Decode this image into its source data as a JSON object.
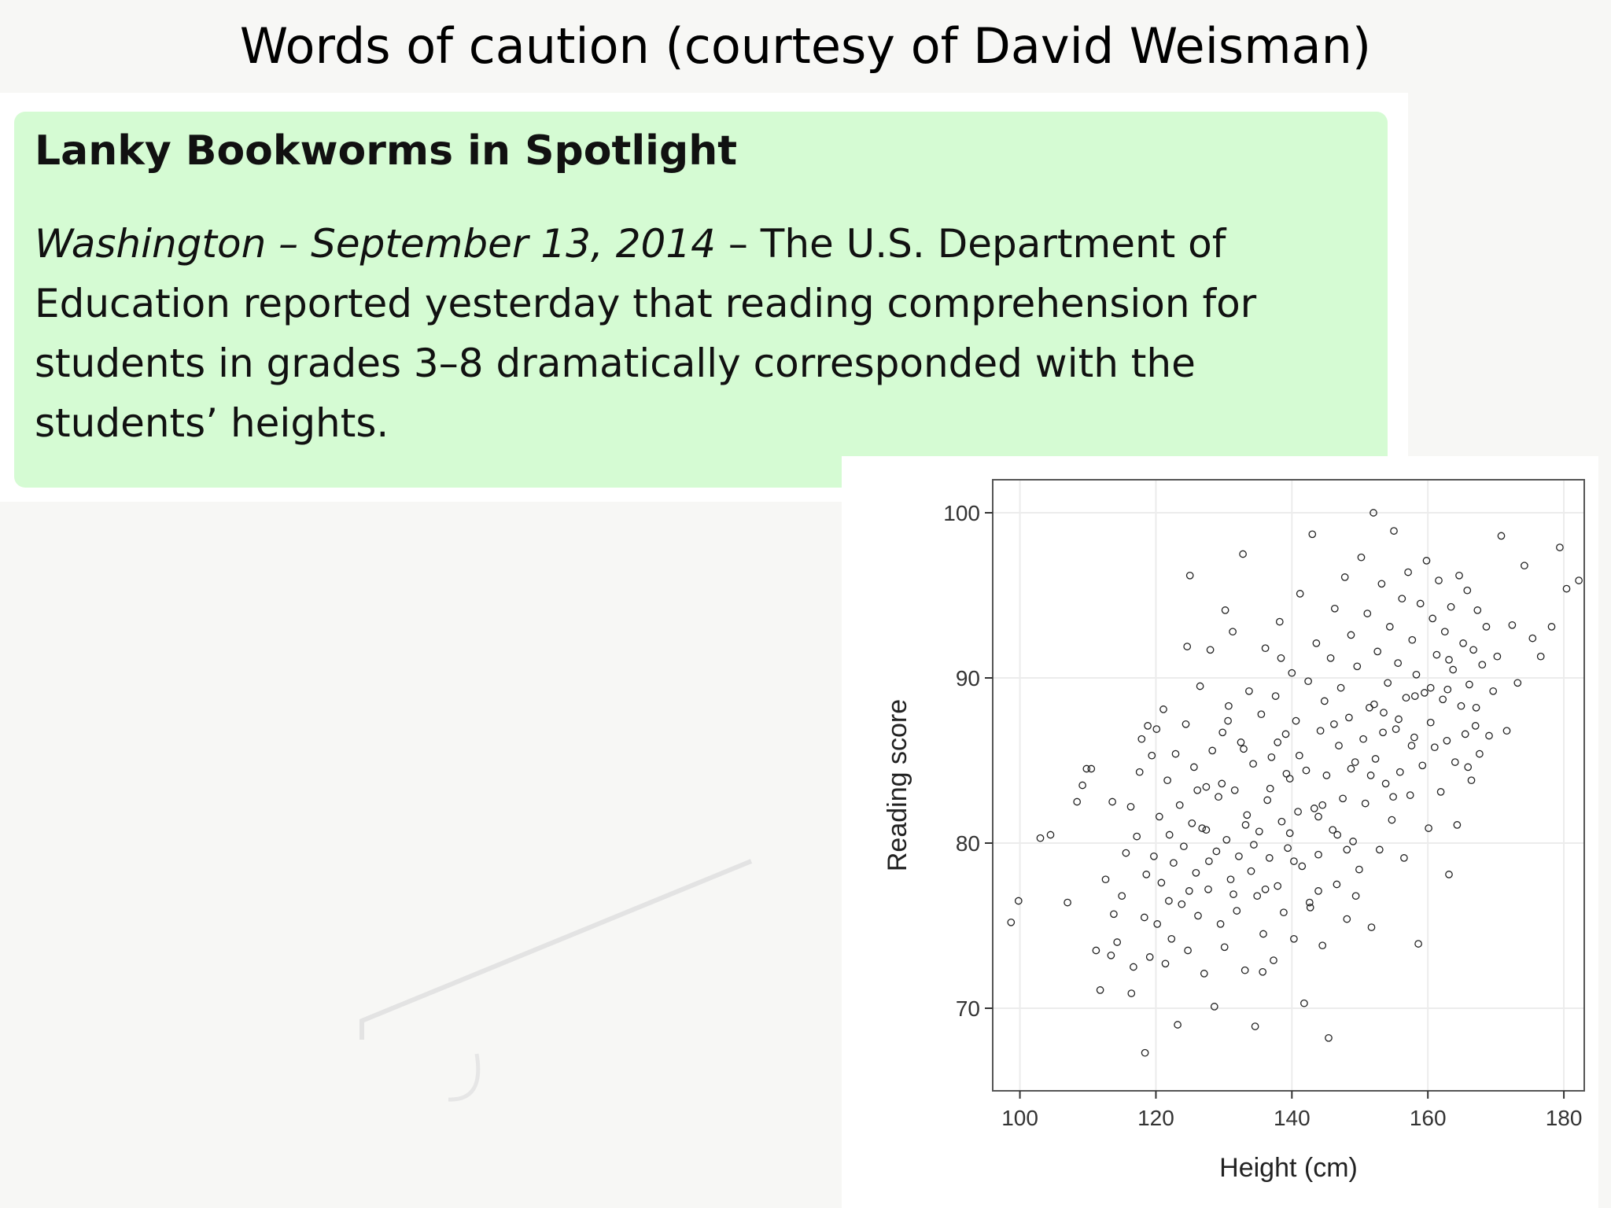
{
  "slide": {
    "title": "Words of caution (courtesy of David Weisman)"
  },
  "article": {
    "headline": "Lanky Bookworms in Spotlight",
    "dateline": "Washington – September 13, 2014",
    "separator": " – ",
    "body": "The U.S. Department of Education reported yesterday that reading comprehension for students in grades 3–8 dramatically corresponded with the students’ heights.",
    "background_color": "#d5fbd3"
  },
  "chart_data": {
    "type": "scatter",
    "title": "",
    "xlabel": "Height (cm)",
    "ylabel": "Reading score",
    "xlim": [
      96,
      183
    ],
    "ylim": [
      65,
      102
    ],
    "xticks": [
      100,
      120,
      140,
      160,
      180
    ],
    "yticks": [
      70,
      80,
      90,
      100
    ],
    "grid": true,
    "marker": "open-circle",
    "series": [
      {
        "points": [
          [
            98.7,
            75.2
          ],
          [
            99.8,
            76.5
          ],
          [
            103,
            80.3
          ],
          [
            104.5,
            80.5
          ],
          [
            107,
            76.4
          ],
          [
            108.4,
            82.5
          ],
          [
            109.2,
            83.5
          ],
          [
            109.8,
            84.5
          ],
          [
            110.5,
            84.5
          ],
          [
            111.2,
            73.5
          ],
          [
            111.8,
            71.1
          ],
          [
            112.6,
            77.8
          ],
          [
            113.4,
            73.2
          ],
          [
            113.8,
            75.7
          ],
          [
            114.3,
            74
          ],
          [
            115,
            76.8
          ],
          [
            115.6,
            79.4
          ],
          [
            116.3,
            82.2
          ],
          [
            116.7,
            72.5
          ],
          [
            117.2,
            80.4
          ],
          [
            117.6,
            84.3
          ],
          [
            117.9,
            86.3
          ],
          [
            118.3,
            75.5
          ],
          [
            118.4,
            67.3
          ],
          [
            118.6,
            78.1
          ],
          [
            118.8,
            87.1
          ],
          [
            119.4,
            85.3
          ],
          [
            119.7,
            79.2
          ],
          [
            120.2,
            75.1
          ],
          [
            120.5,
            81.6
          ],
          [
            120.8,
            77.6
          ],
          [
            121.1,
            88.1
          ],
          [
            121.4,
            72.7
          ],
          [
            121.7,
            83.8
          ],
          [
            122,
            80.5
          ],
          [
            122.3,
            74.2
          ],
          [
            122.6,
            78.8
          ],
          [
            122.9,
            85.4
          ],
          [
            123.2,
            69
          ],
          [
            123.5,
            82.3
          ],
          [
            123.8,
            76.3
          ],
          [
            124.1,
            79.8
          ],
          [
            124.4,
            87.2
          ],
          [
            124.7,
            73.5
          ],
          [
            125,
            96.2
          ],
          [
            125.3,
            81.2
          ],
          [
            125.6,
            84.6
          ],
          [
            125.9,
            78.2
          ],
          [
            126.2,
            75.6
          ],
          [
            126.5,
            89.5
          ],
          [
            126.8,
            80.9
          ],
          [
            127.1,
            72.1
          ],
          [
            127.4,
            83.4
          ],
          [
            127.7,
            77.2
          ],
          [
            128,
            91.7
          ],
          [
            128.3,
            85.6
          ],
          [
            128.6,
            70.1
          ],
          [
            128.9,
            79.5
          ],
          [
            129.2,
            82.8
          ],
          [
            129.5,
            75.1
          ],
          [
            129.8,
            86.7
          ],
          [
            130.1,
            73.7
          ],
          [
            130.4,
            80.2
          ],
          [
            130.7,
            88.3
          ],
          [
            131,
            77.8
          ],
          [
            131.3,
            92.8
          ],
          [
            131.6,
            83.2
          ],
          [
            131.9,
            75.9
          ],
          [
            132.2,
            79.2
          ],
          [
            132.5,
            86.1
          ],
          [
            132.8,
            97.5
          ],
          [
            133.1,
            72.3
          ],
          [
            133.4,
            81.7
          ],
          [
            133.7,
            89.2
          ],
          [
            134,
            78.3
          ],
          [
            134.3,
            84.8
          ],
          [
            134.6,
            68.9
          ],
          [
            134.9,
            76.8
          ],
          [
            135.2,
            80.7
          ],
          [
            135.5,
            87.8
          ],
          [
            135.8,
            74.5
          ],
          [
            136.1,
            91.8
          ],
          [
            136.4,
            82.6
          ],
          [
            136.7,
            79.1
          ],
          [
            137,
            85.2
          ],
          [
            137.3,
            72.9
          ],
          [
            137.6,
            88.9
          ],
          [
            137.9,
            77.4
          ],
          [
            138.2,
            93.4
          ],
          [
            138.5,
            81.3
          ],
          [
            138.8,
            75.8
          ],
          [
            139.1,
            86.6
          ],
          [
            139.4,
            79.7
          ],
          [
            139.7,
            83.9
          ],
          [
            140,
            90.3
          ],
          [
            140.3,
            74.2
          ],
          [
            140.6,
            87.4
          ],
          [
            140.9,
            81.9
          ],
          [
            141.2,
            95.1
          ],
          [
            141.5,
            78.6
          ],
          [
            141.8,
            70.3
          ],
          [
            142.1,
            84.4
          ],
          [
            142.4,
            89.8
          ],
          [
            142.7,
            76.1
          ],
          [
            143,
            98.7
          ],
          [
            143.3,
            82.1
          ],
          [
            143.6,
            92.1
          ],
          [
            143.9,
            79.3
          ],
          [
            144.2,
            86.8
          ],
          [
            144.5,
            73.8
          ],
          [
            144.8,
            88.6
          ],
          [
            145.1,
            84.1
          ],
          [
            145.4,
            68.2
          ],
          [
            145.7,
            91.2
          ],
          [
            146,
            80.8
          ],
          [
            146.3,
            94.2
          ],
          [
            146.6,
            77.5
          ],
          [
            146.9,
            85.9
          ],
          [
            147.2,
            89.4
          ],
          [
            147.5,
            82.7
          ],
          [
            147.8,
            96.1
          ],
          [
            148.1,
            75.4
          ],
          [
            148.4,
            87.6
          ],
          [
            148.7,
            92.6
          ],
          [
            149,
            80.1
          ],
          [
            149.3,
            84.9
          ],
          [
            149.6,
            90.7
          ],
          [
            149.9,
            78.4
          ],
          [
            150.2,
            97.3
          ],
          [
            150.5,
            86.3
          ],
          [
            150.8,
            82.4
          ],
          [
            151.1,
            93.9
          ],
          [
            151.4,
            88.2
          ],
          [
            151.7,
            74.9
          ],
          [
            152,
            100
          ],
          [
            152.3,
            85.1
          ],
          [
            152.6,
            91.6
          ],
          [
            152.9,
            79.6
          ],
          [
            153.2,
            95.7
          ],
          [
            153.5,
            87.9
          ],
          [
            153.8,
            83.6
          ],
          [
            154.1,
            89.7
          ],
          [
            154.4,
            93.1
          ],
          [
            154.7,
            81.4
          ],
          [
            155,
            98.9
          ],
          [
            155.3,
            86.9
          ],
          [
            155.6,
            90.9
          ],
          [
            155.9,
            84.3
          ],
          [
            156.2,
            94.8
          ],
          [
            156.5,
            79.1
          ],
          [
            156.8,
            88.8
          ],
          [
            157.1,
            96.4
          ],
          [
            157.4,
            82.9
          ],
          [
            157.7,
            92.3
          ],
          [
            158,
            86.4
          ],
          [
            158.3,
            90.2
          ],
          [
            158.6,
            73.9
          ],
          [
            158.9,
            94.5
          ],
          [
            159.2,
            84.7
          ],
          [
            159.5,
            89.1
          ],
          [
            159.8,
            97.1
          ],
          [
            160.1,
            80.9
          ],
          [
            160.4,
            87.3
          ],
          [
            160.7,
            93.6
          ],
          [
            161,
            85.8
          ],
          [
            161.3,
            91.4
          ],
          [
            161.6,
            95.9
          ],
          [
            161.9,
            83.1
          ],
          [
            162.2,
            88.7
          ],
          [
            162.5,
            92.8
          ],
          [
            162.8,
            86.2
          ],
          [
            163.1,
            78.1
          ],
          [
            163.4,
            94.3
          ],
          [
            163.7,
            90.5
          ],
          [
            164,
            84.9
          ],
          [
            164.3,
            81.1
          ],
          [
            164.6,
            96.2
          ],
          [
            164.9,
            88.3
          ],
          [
            165.2,
            92.1
          ],
          [
            165.5,
            86.6
          ],
          [
            165.8,
            95.3
          ],
          [
            166.1,
            89.6
          ],
          [
            166.4,
            83.8
          ],
          [
            166.7,
            91.7
          ],
          [
            167,
            87.1
          ],
          [
            167.3,
            94.1
          ],
          [
            167.6,
            85.4
          ],
          [
            168,
            90.8
          ],
          [
            168.6,
            93.1
          ],
          [
            169,
            86.5
          ],
          [
            169.6,
            89.2
          ],
          [
            170.2,
            91.3
          ],
          [
            170.8,
            98.6
          ],
          [
            171.6,
            86.8
          ],
          [
            172.4,
            93.2
          ],
          [
            173.2,
            89.7
          ],
          [
            174.2,
            96.8
          ],
          [
            175.4,
            92.4
          ],
          [
            176.6,
            91.3
          ],
          [
            178.2,
            93.1
          ],
          [
            179.4,
            97.9
          ],
          [
            180.4,
            95.4
          ],
          [
            182.2,
            95.9
          ],
          [
            113.6,
            82.5
          ],
          [
            116.4,
            70.9
          ],
          [
            119.1,
            73.1
          ],
          [
            121.9,
            76.5
          ],
          [
            124.6,
            91.9
          ],
          [
            127.4,
            80.8
          ],
          [
            130.2,
            94.1
          ],
          [
            132.9,
            85.7
          ],
          [
            135.7,
            72.2
          ],
          [
            138.4,
            91.2
          ],
          [
            141.1,
            85.3
          ],
          [
            143.9,
            77.1
          ],
          [
            146.7,
            80.5
          ],
          [
            149.4,
            76.8
          ],
          [
            152.1,
            88.4
          ],
          [
            154.9,
            82.8
          ],
          [
            157.6,
            85.9
          ],
          [
            160.4,
            89.4
          ],
          [
            163.1,
            91.1
          ],
          [
            165.9,
            84.6
          ],
          [
            167.1,
            88.2
          ],
          [
            120.1,
            86.9
          ],
          [
            124.9,
            77.1
          ],
          [
            129.7,
            83.6
          ],
          [
            134.4,
            79.9
          ],
          [
            139.2,
            84.2
          ],
          [
            143.9,
            81.6
          ],
          [
            148.7,
            84.5
          ],
          [
            153.4,
            86.7
          ],
          [
            158.1,
            88.9
          ],
          [
            162.9,
            89.3
          ],
          [
            136.1,
            77.2
          ],
          [
            140.3,
            78.9
          ],
          [
            144.5,
            82.3
          ],
          [
            137.9,
            86.1
          ],
          [
            133.2,
            81.1
          ],
          [
            127.8,
            78.9
          ],
          [
            126.1,
            83.2
          ],
          [
            131.4,
            76.9
          ],
          [
            139.7,
            80.6
          ],
          [
            146.2,
            87.2
          ],
          [
            151.6,
            84.1
          ],
          [
            155.7,
            87.5
          ],
          [
            142.6,
            76.4
          ],
          [
            148.1,
            79.6
          ],
          [
            136.8,
            83.3
          ],
          [
            130.6,
            87.4
          ]
        ]
      }
    ]
  }
}
